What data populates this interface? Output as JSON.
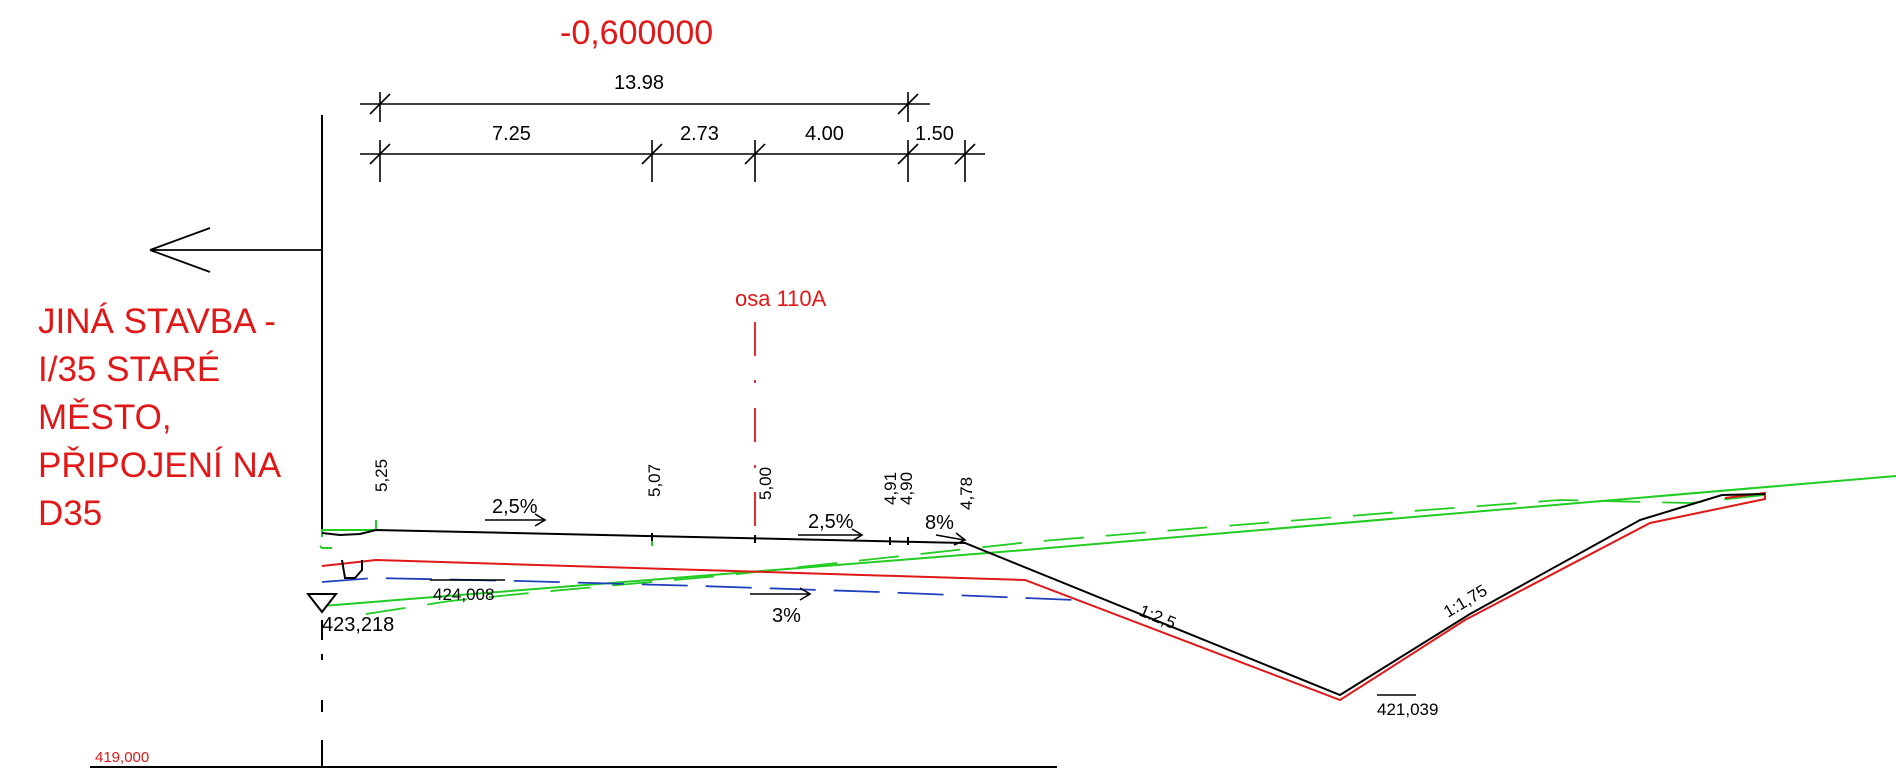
{
  "header_value": "-0,600000",
  "axis_label": "osa 110A",
  "note_lines": [
    "JINÁ STAVBA -",
    "I/35 STARÉ",
    "MĚSTO,",
    "PŘIPOJENÍ NA",
    "D35"
  ],
  "dimensions": {
    "total": "13.98",
    "seg_1": "7.25",
    "seg_2": "2.73",
    "seg_3": "4.00",
    "seg_4": "1.50"
  },
  "offsets": [
    "5,25",
    "5,07",
    "5,00",
    "4,91",
    "4,90",
    "4,78"
  ],
  "slopes": {
    "left": "2,5%",
    "right": "2,5%",
    "shoulder": "8%",
    "subgrade": "3%"
  },
  "side_slopes": {
    "fill": "1:2,5",
    "cut": "1:1,75"
  },
  "elevations": {
    "left_edge": "423,218",
    "subgrade": "424,008",
    "ditch_bottom": "421,039",
    "datum": "419,000"
  },
  "colors": {
    "annotation_red": "#e01818",
    "terrain_green": "#22cc22",
    "subgrade_blue": "#1f3fbf",
    "design_black": "#000000"
  }
}
